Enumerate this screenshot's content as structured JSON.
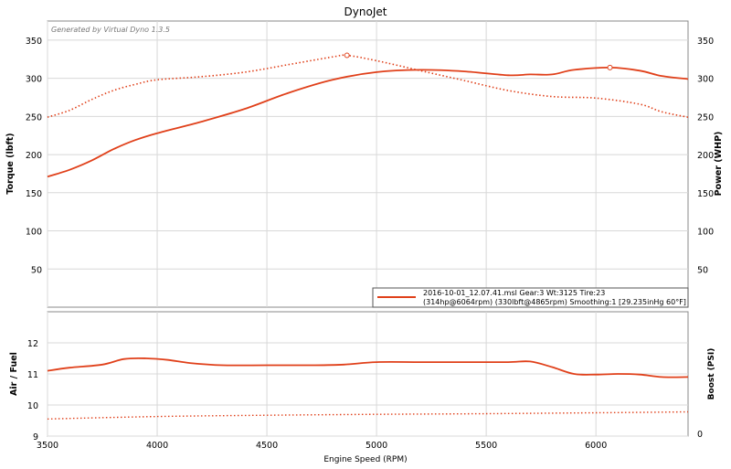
{
  "chart_data": [
    {
      "type": "line",
      "title": "DynoJet",
      "watermark": "Generated by Virtual Dyno 1.3.5",
      "ylabel": "Torque (lbft)",
      "ylabel_right": "Power (WHP)",
      "xlim": [
        3500,
        6420
      ],
      "ylim": [
        0,
        375
      ],
      "yticks": [
        50,
        100,
        150,
        200,
        250,
        300,
        350
      ],
      "grid": true,
      "legend": {
        "position": "bottom-right",
        "line1": "2016-10-01_12.07.41.msl Gear:3 Wt:3125 Tire:23",
        "line2": "(314hp@6064rpm) (330lbft@4865rpm) Smoothing:1 [29.235inHg 60°F]"
      },
      "series": [
        {
          "style": "solid",
          "axis": "right",
          "x": [
            3500,
            3600,
            3700,
            3800,
            3900,
            4000,
            4200,
            4400,
            4600,
            4800,
            5000,
            5200,
            5400,
            5600,
            5700,
            5800,
            5900,
            6064,
            6200,
            6300,
            6420
          ],
          "y": [
            171,
            180,
            192,
            207,
            219,
            228,
            243,
            260,
            281,
            298,
            308,
            311,
            309,
            304,
            305,
            305,
            311,
            314,
            310,
            303,
            299
          ],
          "peak_marker": {
            "x": 6064,
            "y": 314
          }
        },
        {
          "style": "dotted",
          "axis": "left",
          "x": [
            3500,
            3600,
            3700,
            3800,
            3900,
            4000,
            4200,
            4400,
            4600,
            4800,
            4865,
            5000,
            5200,
            5400,
            5600,
            5800,
            6000,
            6200,
            6300,
            6420
          ],
          "y": [
            249,
            258,
            272,
            284,
            292,
            298,
            302,
            308,
            318,
            328,
            330,
            323,
            310,
            297,
            284,
            276,
            274,
            266,
            256,
            249
          ],
          "peak_marker": {
            "x": 4865,
            "y": 330
          }
        }
      ]
    },
    {
      "type": "line",
      "xlabel": "Engine Speed (RPM)",
      "ylabel": "Air / Fuel",
      "ylabel_right": "Boost (PSI)",
      "xlim": [
        3500,
        6420
      ],
      "ylim": [
        9,
        13
      ],
      "yticks": [
        9,
        10,
        11,
        12
      ],
      "xticks": [
        3500,
        4000,
        4500,
        5000,
        5500,
        6000
      ],
      "yticks_right": [
        0
      ],
      "grid": true,
      "series": [
        {
          "style": "solid",
          "x": [
            3500,
            3600,
            3750,
            3850,
            3950,
            4050,
            4150,
            4300,
            4500,
            4700,
            4850,
            5000,
            5200,
            5400,
            5600,
            5700,
            5800,
            5900,
            6000,
            6100,
            6200,
            6300,
            6420
          ],
          "y": [
            11.1,
            11.2,
            11.3,
            11.48,
            11.5,
            11.45,
            11.35,
            11.28,
            11.28,
            11.28,
            11.3,
            11.38,
            11.38,
            11.38,
            11.38,
            11.4,
            11.22,
            11.0,
            10.98,
            11.0,
            10.98,
            10.9,
            10.9
          ]
        },
        {
          "style": "dotted",
          "x": [
            3500,
            4000,
            4500,
            5000,
            5500,
            6000,
            6420
          ],
          "y": [
            9.55,
            9.63,
            9.67,
            9.7,
            9.72,
            9.75,
            9.78
          ]
        }
      ]
    }
  ]
}
